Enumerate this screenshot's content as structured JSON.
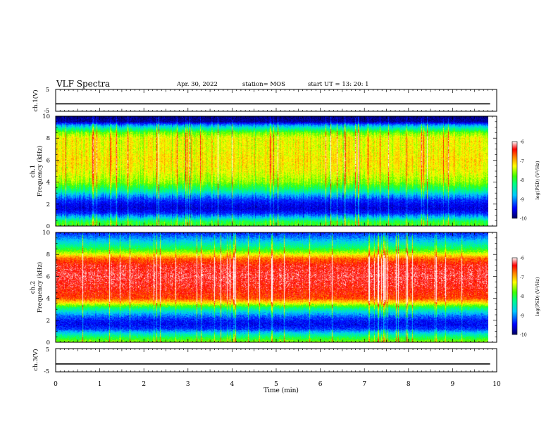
{
  "header": {
    "title": "VLF Spectra",
    "date": "Apr. 30, 2022",
    "station": "station= MOS",
    "start": "start  UT  =    13: 20: 1"
  },
  "chart_data": [
    {
      "type": "line",
      "panel": "ch1-voltage",
      "ylabel": "ch.1(V)",
      "ylim": [
        -5,
        5
      ],
      "yticks": [
        "5",
        "-5"
      ],
      "x": [
        0,
        9.85
      ],
      "values": [
        -1.6,
        -1.6
      ]
    },
    {
      "type": "heatmap",
      "panel": "ch1-spectrogram",
      "ylabel": "ch.1\nFrequency  (kHz)",
      "xlim": [
        0,
        10
      ],
      "ylim": [
        0,
        10
      ],
      "yticks": [
        "0",
        "2",
        "4",
        "6",
        "8",
        "10"
      ],
      "data_xmax": 9.85,
      "colorbar": {
        "label": "log(PSD) (V²/Hz)",
        "range": [
          -10,
          -6
        ],
        "ticks": [
          "-6",
          "-7",
          "-8",
          "-9",
          "-10"
        ]
      },
      "band_profile": {
        "freq_khz": [
          0,
          0.4,
          0.8,
          1.2,
          1.6,
          2.0,
          2.4,
          2.8,
          3.2,
          4.0,
          5.0,
          6.0,
          7.0,
          8.0,
          8.5,
          8.9,
          9.2,
          9.5,
          10
        ],
        "mean_log_psd": [
          -7.8,
          -8.0,
          -8.8,
          -9.4,
          -9.6,
          -9.5,
          -9.3,
          -8.9,
          -8.3,
          -7.6,
          -7.3,
          -7.2,
          -7.3,
          -7.3,
          -7.7,
          -8.4,
          -9.0,
          -9.8,
          -9.9
        ]
      }
    },
    {
      "type": "heatmap",
      "panel": "ch2-spectrogram",
      "ylabel": "ch.2\nFrequency  (kHz)",
      "xlim": [
        0,
        10
      ],
      "ylim": [
        0,
        10
      ],
      "yticks": [
        "0",
        "2",
        "4",
        "6",
        "8",
        "10"
      ],
      "data_xmax": 9.85,
      "colorbar": {
        "label": "log(PSD) (V²/Hz)",
        "range": [
          -10,
          -6
        ],
        "ticks": [
          "-6",
          "-7",
          "-8",
          "-9",
          "-10"
        ]
      },
      "band_profile": {
        "freq_khz": [
          0,
          0.4,
          0.8,
          1.2,
          1.6,
          2.0,
          2.4,
          2.8,
          3.2,
          3.6,
          4.0,
          5.0,
          6.0,
          7.0,
          7.6,
          8.0,
          8.5,
          9.0,
          9.5,
          10
        ],
        "mean_log_psd": [
          -7.6,
          -8.0,
          -8.6,
          -9.3,
          -9.5,
          -9.4,
          -9.1,
          -8.6,
          -8.0,
          -7.2,
          -6.6,
          -6.4,
          -6.3,
          -6.4,
          -6.7,
          -7.3,
          -8.0,
          -8.5,
          -9.0,
          -9.4
        ]
      }
    },
    {
      "type": "line",
      "panel": "ch3-voltage",
      "ylabel": "ch.3(V)",
      "ylim": [
        -5,
        5
      ],
      "yticks": [
        "5",
        "-5"
      ],
      "x": [
        0,
        9.85
      ],
      "values": [
        -1.6,
        -1.6
      ]
    }
  ],
  "xaxis": {
    "label": "Time  (min)",
    "range": [
      0,
      10
    ],
    "ticks": [
      "0",
      "1",
      "2",
      "3",
      "4",
      "5",
      "6",
      "7",
      "8",
      "9",
      "10"
    ]
  }
}
